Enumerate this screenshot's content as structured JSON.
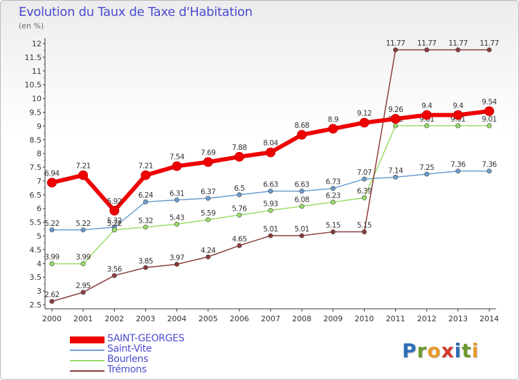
{
  "title": "Evolution du Taux de Taxe d'Habitation",
  "unit": "(en %)",
  "logo": {
    "letters": [
      {
        "ch": "P",
        "color": "#2e6fb8"
      },
      {
        "ch": "r",
        "color": "#6a9a2e"
      },
      {
        "ch": "o",
        "color": "#e89a2a"
      },
      {
        "ch": "x",
        "color": "#d33a2a"
      },
      {
        "ch": "i",
        "color": "#2e6fb8"
      },
      {
        "ch": "t",
        "color": "#6a9a2e"
      },
      {
        "ch": "i",
        "color": "#e89a2a"
      }
    ]
  },
  "chart_data": {
    "type": "line",
    "x": [
      "2000",
      "2001",
      "2002",
      "2003",
      "2004",
      "2005",
      "2006",
      "2007",
      "2008",
      "2009",
      "2010",
      "2011",
      "2012",
      "2013",
      "2014"
    ],
    "ylim": [
      2.5,
      12
    ],
    "ytick_labels": [
      "2.5",
      "3",
      "3.5",
      "4",
      "4.5",
      "5",
      "5.5",
      "6",
      "6.5",
      "7",
      "7.5",
      "8",
      "8.5",
      "9",
      "9.5",
      "10",
      "10.5",
      "11",
      "11.5",
      "12"
    ],
    "grid": false,
    "legend_position": "bottom-left",
    "series": [
      {
        "name": "SAINT-GEORGES",
        "color": "#ee0000",
        "width": 6,
        "values": [
          6.94,
          7.21,
          5.92,
          7.21,
          7.54,
          7.69,
          7.88,
          8.04,
          8.68,
          8.9,
          9.12,
          9.26,
          9.4,
          9.4,
          9.54
        ],
        "labels": [
          "6.94",
          "7.21",
          "5.92",
          "7.21",
          "7.54",
          "7.69",
          "7.88",
          "8.04",
          "8.68",
          "8.9",
          "9.12",
          "9.26",
          "9.4",
          "9.4",
          "9.54"
        ]
      },
      {
        "name": "Saint-Vite",
        "color": "#6a9ccf",
        "width": 1.5,
        "values": [
          5.22,
          5.22,
          5.32,
          6.24,
          6.31,
          6.37,
          6.5,
          6.63,
          6.63,
          6.73,
          7.07,
          7.14,
          7.25,
          7.36,
          7.36
        ],
        "labels": [
          "5.22",
          "5.22",
          "5.32",
          "6.24",
          "6.31",
          "6.37",
          "6.5",
          "6.63",
          "6.63",
          "6.73",
          "7.07",
          "7.14",
          "7.25",
          "7.36",
          "7.36"
        ]
      },
      {
        "name": "Bourlens",
        "color": "#99dd66",
        "width": 1.5,
        "values": [
          3.99,
          3.99,
          5.22,
          5.32,
          5.43,
          5.59,
          5.76,
          5.93,
          6.08,
          6.23,
          6.39,
          9.01,
          9.01,
          9.01,
          9.01
        ],
        "labels": [
          "3.99",
          "3.99",
          "5.22",
          "5.32",
          "5.43",
          "5.59",
          "5.76",
          "5.93",
          "6.08",
          "6.23",
          "6.39",
          "9.01",
          "9.01",
          "9.01",
          "9.01"
        ]
      },
      {
        "name": "Trémons",
        "color": "#8a3a3a",
        "width": 1.5,
        "values": [
          2.62,
          2.95,
          3.56,
          3.85,
          3.97,
          4.24,
          4.65,
          5.01,
          5.01,
          5.15,
          5.15,
          11.77,
          11.77,
          11.77,
          11.77
        ],
        "labels": [
          "2.62",
          "2.95",
          "3.56",
          "3.85",
          "3.97",
          "4.24",
          "4.65",
          "5.01",
          "5.01",
          "5.15",
          "5.15",
          "11.77",
          "11.77",
          "11.77",
          "11.77"
        ]
      }
    ]
  }
}
